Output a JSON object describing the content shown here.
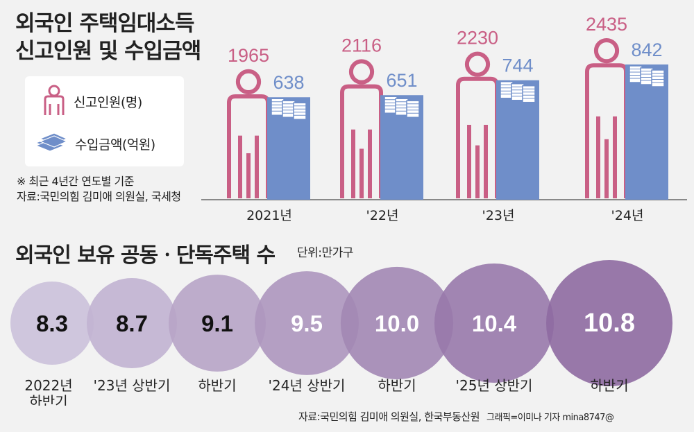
{
  "top": {
    "title_line1": "외국인 주택임대소득",
    "title_line2": "신고인원 및 수입금액",
    "legend_people": "신고인원(명)",
    "legend_income": "수입금액(억원)",
    "note": "※ 최근 4년간 연도별 기준",
    "source": "자료:국민의힘 김미애 의원실, 국세청"
  },
  "bottom": {
    "title": "외국인 보유 공동ㆍ단독주택 수",
    "unit": "단위:만가구"
  },
  "footer": {
    "source": "자료:국민의힘 김미애 의원실, 한국부동산원",
    "credit": "그래픽=이미나 기자 mina8747@"
  },
  "colors": {
    "person_outline": "#c95f85",
    "income_bar": "#6f8ec9",
    "circle_light": "#cbc1da",
    "circle_dark": "#8e6aa1"
  },
  "chart_data": [
    {
      "type": "bar",
      "title": "외국인 주택임대소득 신고인원 및 수입금액",
      "categories": [
        "2021년",
        "'22년",
        "'23년",
        "'24년"
      ],
      "series": [
        {
          "name": "신고인원(명)",
          "values": [
            1965,
            2116,
            2230,
            2435
          ]
        },
        {
          "name": "수입금액(억원)",
          "values": [
            638,
            651,
            744,
            842
          ]
        }
      ]
    },
    {
      "type": "bubble",
      "title": "외국인 보유 공동ㆍ단독주택 수",
      "unit": "단위:만가구",
      "categories": [
        "2022년\n하반기",
        "'23년 상반기",
        "하반기",
        "'24년 상반기",
        "하반기",
        "'25년 상반기",
        "하반기"
      ],
      "values": [
        "8.3",
        "8.7",
        "9.1",
        "9.5",
        "10.0",
        "10.4",
        "10.8"
      ]
    }
  ]
}
